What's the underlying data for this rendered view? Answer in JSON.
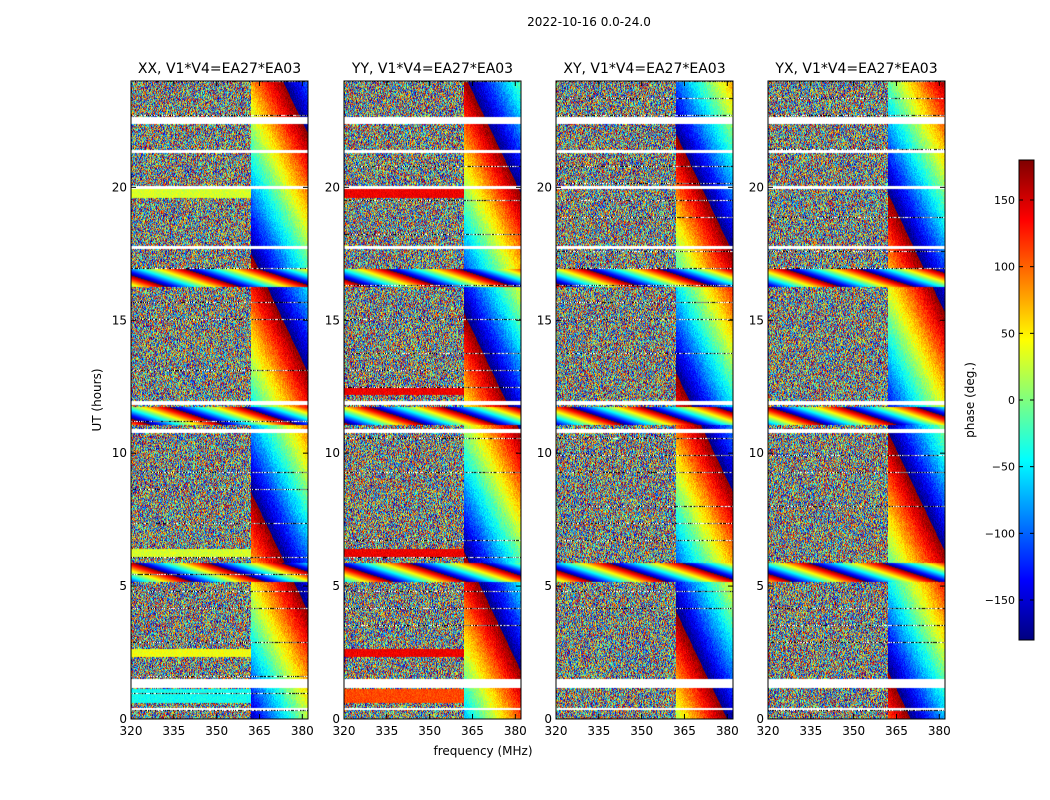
{
  "figure": {
    "suptitle": "2022-10-16 0.0-24.0",
    "xlabel": "frequency (MHz)",
    "ylabel": "UT (hours)",
    "colorbar_label": "phase (deg.)",
    "colormap": "jet",
    "colormap_stops": [
      "#00007f",
      "#0000ff",
      "#007fff",
      "#00ffff",
      "#7fff7f",
      "#ffff00",
      "#ff7f00",
      "#ff0000",
      "#7f0000"
    ]
  },
  "chart_data": {
    "type": "heatmap",
    "x_range": [
      320,
      382
    ],
    "y_range": [
      0,
      24
    ],
    "x_ticks": [
      320,
      335,
      350,
      365,
      380
    ],
    "x_tick_labels": [
      "320",
      "335",
      "350",
      "365",
      "380"
    ],
    "y_ticks": [
      0,
      5,
      10,
      15,
      20
    ],
    "y_tick_labels": [
      "0",
      "5",
      "10",
      "15",
      "20"
    ],
    "colorbar_range": [
      -180,
      180
    ],
    "colorbar_ticks": [
      150,
      100,
      50,
      0,
      -50,
      -100,
      -150
    ],
    "colorbar_tick_labels": [
      "150",
      "100",
      "50",
      "0",
      "−50",
      "−100",
      "−150"
    ],
    "panels": [
      {
        "title": "XX, V1*V4=EA27*EA03",
        "polarization": "XX"
      },
      {
        "title": "YY, V1*V4=EA27*EA03",
        "polarization": "YY"
      },
      {
        "title": "XY, V1*V4=EA27*EA03",
        "polarization": "XY"
      },
      {
        "title": "YX, V1*V4=EA27*EA03",
        "polarization": "YX"
      }
    ],
    "data_gaps_hours": [
      [
        22.4,
        22.65
      ],
      [
        21.3,
        21.42
      ],
      [
        19.95,
        20.05
      ],
      [
        17.7,
        17.82
      ],
      [
        11.8,
        11.95
      ],
      [
        10.75,
        10.9
      ],
      [
        1.15,
        1.5
      ],
      [
        0.32,
        0.38
      ]
    ],
    "bright_fringe_hours": [
      16.6,
      11.4,
      5.5
    ],
    "phase_bands": [
      {
        "polarization": "XX",
        "hours": [
          19.6,
          20.0
        ],
        "mhz": [
          320,
          362
        ],
        "phase_deg": 30
      },
      {
        "polarization": "XX",
        "hours": [
          2.3,
          2.6
        ],
        "mhz": [
          320,
          362
        ],
        "phase_deg": 40
      },
      {
        "polarization": "XX",
        "hours": [
          0.6,
          1.1
        ],
        "mhz": [
          320,
          362
        ],
        "phase_deg": -40
      },
      {
        "polarization": "XX",
        "hours": [
          6.1,
          6.4
        ],
        "mhz": [
          320,
          362
        ],
        "phase_deg": 30
      },
      {
        "polarization": "YY",
        "hours": [
          19.6,
          20.0
        ],
        "mhz": [
          320,
          362
        ],
        "phase_deg": 140
      },
      {
        "polarization": "YY",
        "hours": [
          2.3,
          2.6
        ],
        "mhz": [
          320,
          362
        ],
        "phase_deg": 140
      },
      {
        "polarization": "YY",
        "hours": [
          0.6,
          1.1
        ],
        "mhz": [
          320,
          362
        ],
        "phase_deg": 110
      },
      {
        "polarization": "YY",
        "hours": [
          6.1,
          6.4
        ],
        "mhz": [
          320,
          362
        ],
        "phase_deg": 140
      },
      {
        "polarization": "YY",
        "hours": [
          12.2,
          12.5
        ],
        "mhz": [
          320,
          362
        ],
        "phase_deg": 140
      }
    ]
  }
}
